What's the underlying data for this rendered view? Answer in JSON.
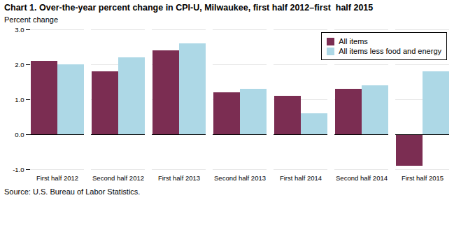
{
  "chart_data": {
    "type": "bar",
    "title": "Chart 1. Over-the-year percent change in CPI-U, Milwaukee, first half 2012–first  half 2015",
    "ylabel": "Percent change",
    "caption": "Source: U.S. Bureau of Labor Statistics.",
    "categories": [
      "First half 2012",
      "Second half 2012",
      "First half 2013",
      "Second half 2013",
      "First half 2014",
      "Second half 2014",
      "First half 2015"
    ],
    "series": [
      {
        "name": "All items",
        "color": "#7B2D52",
        "values": [
          2.1,
          1.8,
          2.4,
          1.2,
          1.1,
          1.3,
          -0.9
        ]
      },
      {
        "name": "All items less food and energy",
        "color": "#ADD8E6",
        "values": [
          2.0,
          2.2,
          2.6,
          1.3,
          0.6,
          1.4,
          1.8
        ]
      }
    ],
    "ylim": [
      -1.0,
      3.0
    ],
    "yticks": [
      {
        "value": -1.0,
        "label": "-1.0"
      },
      {
        "value": 0.0,
        "label": "0.0"
      },
      {
        "value": 1.0,
        "label": "1.0"
      },
      {
        "value": 2.0,
        "label": "2.0"
      },
      {
        "value": 3.0,
        "label": "3.0"
      }
    ],
    "grid": true,
    "legend": "upper right"
  }
}
